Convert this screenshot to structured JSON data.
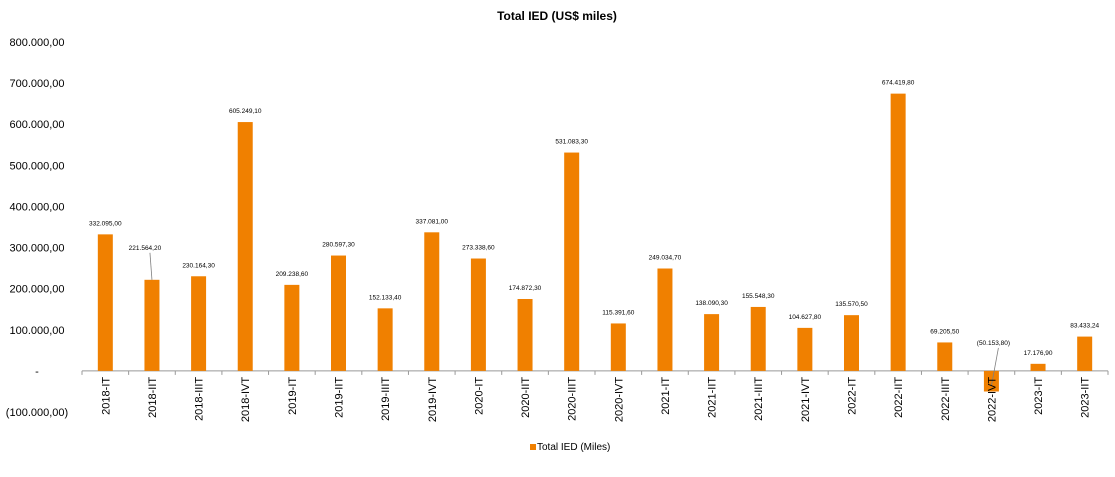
{
  "chart_data": {
    "type": "bar",
    "title": "Total IED (US$ miles)",
    "categories": [
      "2018-IT",
      "2018-IIT",
      "2018-IIIT",
      "2018-IVT",
      "2019-IT",
      "2019-IIT",
      "2019-IIIT",
      "2019-IVT",
      "2020-IT",
      "2020-IIT",
      "2020-IIIT",
      "2020-IVT",
      "2021-IT",
      "2021-IIT",
      "2021-IIIT",
      "2021-IVT",
      "2022-IT",
      "2022-IIT",
      "2022-IIIT",
      "2022-IVT",
      "2023-IT",
      "2023-IIT"
    ],
    "series": [
      {
        "name": "Total IED (Miles)",
        "color": "#F08000",
        "values": [
          332095.0,
          221564.2,
          230164.3,
          605249.1,
          209238.6,
          280597.3,
          152133.4,
          337081.0,
          273338.6,
          174872.3,
          531083.3,
          115391.6,
          249034.7,
          138090.3,
          155548.3,
          104627.8,
          135570.5,
          674419.8,
          69205.5,
          -50153.8,
          17176.9,
          83433.24
        ]
      }
    ],
    "data_labels": [
      "332.095,00",
      "221.564,20",
      "230.164,30",
      "605.249,10",
      "209.238,60",
      "280.597,30",
      "152.133,40",
      "337.081,00",
      "273.338,60",
      "174.872,30",
      "531.083,30",
      "115.391,60",
      "249.034,70",
      "138.090,30",
      "155.548,30",
      "104.627,80",
      "135.570,50",
      "674.419,80",
      "69.205,50",
      "(50.153,80)",
      "17.176,90",
      "83.433,24"
    ],
    "y_ticks": [
      {
        "value": 800000,
        "label": "800.000,00"
      },
      {
        "value": 700000,
        "label": "700.000,00"
      },
      {
        "value": 600000,
        "label": "600.000,00"
      },
      {
        "value": 500000,
        "label": "500.000,00"
      },
      {
        "value": 400000,
        "label": "400.000,00"
      },
      {
        "value": 300000,
        "label": "300.000,00"
      },
      {
        "value": 200000,
        "label": "200.000,00"
      },
      {
        "value": 100000,
        "label": "100.000,00"
      },
      {
        "value": 0,
        "label": "-"
      },
      {
        "value": -100000,
        "label": "(100.000,00)"
      }
    ],
    "ylim": [
      -100000,
      800000
    ],
    "xlabel": "",
    "ylabel": "",
    "grid": false,
    "legend": "bottom",
    "leader_line_categories": [
      "2018-IIT",
      "2022-IVT"
    ]
  }
}
